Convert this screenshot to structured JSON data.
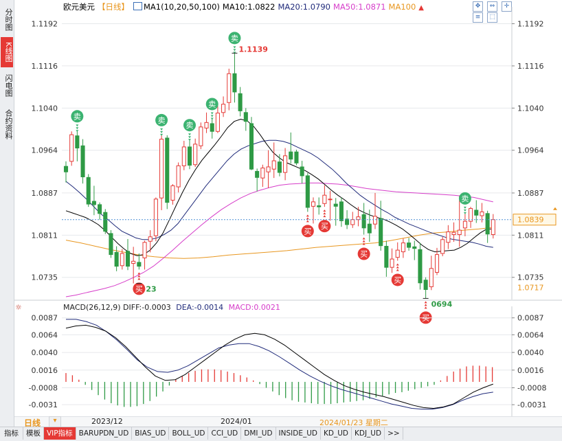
{
  "sidebar": {
    "tabs": [
      {
        "label": "分时图",
        "active": false
      },
      {
        "label": "K线图",
        "active": true
      },
      {
        "label": "闪电图",
        "active": false
      },
      {
        "label": "合约资料",
        "active": false
      }
    ]
  },
  "header": {
    "symbol": "欧元美元",
    "period": "【日线】",
    "ma_label": "MA1(10,20,50,100)",
    "ma10": "MA10:1.0822",
    "ma20": "MA20:1.0790",
    "ma50": "MA50:1.0871",
    "ma100": "MA100",
    "icons": [
      "fullscreen-icon",
      "fit-icon",
      "move-icon",
      "settings-icon",
      "screenshot-icon"
    ]
  },
  "colors": {
    "up": "#e53935",
    "down": "#2e9a45",
    "ma10": "#000000",
    "ma20": "#1f2a7a",
    "ma50": "#d63cc9",
    "ma100": "#e8961e",
    "macd_dea": "#1f2a7a",
    "macd_diff": "#000000"
  },
  "chart_data": [
    {
      "type": "candlestick",
      "ylim": [
        1.07,
        1.121
      ],
      "yticks": [
        "1.1192",
        "1.1116",
        "1.1040",
        "1.0964",
        "1.0887",
        "1.0811",
        "1.0735"
      ],
      "xticks": [
        "2023/12",
        "2024/01"
      ],
      "current_price": "1.0839",
      "ma100_value": "1.0717",
      "high_label": "1.1139",
      "low_labels": [
        "23",
        "0694"
      ],
      "sell_marker": "卖",
      "buy_marker": "买",
      "candles": [
        [
          1.0935,
          1.0925,
          1.0944,
          1.0906
        ],
        [
          1.0944,
          1.0992,
          1.0998,
          1.0936
        ],
        [
          1.099,
          1.0968,
          1.0998,
          1.0944
        ],
        [
          1.0972,
          1.0916,
          1.0984,
          1.0904
        ],
        [
          1.0915,
          1.0867,
          1.0921,
          1.0862
        ],
        [
          1.0872,
          1.0866,
          1.09,
          1.0847
        ],
        [
          1.0866,
          1.085,
          1.087,
          1.0839
        ],
        [
          1.0852,
          1.0818,
          1.0858,
          1.0813
        ],
        [
          1.0814,
          1.0776,
          1.082,
          1.077
        ],
        [
          1.078,
          1.0755,
          1.0791,
          1.0746
        ],
        [
          1.0756,
          1.0778,
          1.0786,
          1.0749
        ],
        [
          1.0782,
          1.0755,
          1.0804,
          1.0748
        ],
        [
          1.076,
          1.0764,
          1.079,
          1.0724
        ],
        [
          1.0762,
          1.0755,
          1.0778,
          1.0749
        ],
        [
          1.077,
          1.0798,
          1.0801,
          1.0749
        ],
        [
          1.08,
          1.0808,
          1.082,
          1.078
        ],
        [
          1.081,
          1.0876,
          1.0879,
          1.08
        ],
        [
          1.0878,
          1.0984,
          1.0991,
          1.0856
        ],
        [
          1.0986,
          1.087,
          1.0991,
          1.0858
        ],
        [
          1.0874,
          1.09,
          1.0903,
          1.0866
        ],
        [
          1.0898,
          1.0936,
          1.0942,
          1.0888
        ],
        [
          1.0936,
          1.097,
          1.0981,
          1.0928
        ],
        [
          1.097,
          1.0937,
          1.0982,
          1.093
        ],
        [
          1.0938,
          1.0975,
          1.0985,
          1.0934
        ],
        [
          1.0972,
          1.1006,
          1.1014,
          1.0966
        ],
        [
          1.1004,
          1.1014,
          1.1032,
          1.0995
        ],
        [
          1.1012,
          1.0998,
          1.102,
          1.0985
        ],
        [
          1.0998,
          1.1031,
          1.1044,
          1.0995
        ],
        [
          1.1032,
          1.1047,
          1.1061,
          1.1024
        ],
        [
          1.105,
          1.1102,
          1.1111,
          1.1036
        ],
        [
          1.1102,
          1.1069,
          1.1139,
          1.105
        ],
        [
          1.1066,
          1.1035,
          1.1078,
          1.1025
        ],
        [
          1.1032,
          1.1016,
          1.104,
          1.0999
        ],
        [
          1.1012,
          1.093,
          1.1024,
          1.0928
        ],
        [
          1.0926,
          1.0915,
          1.0931,
          1.089
        ],
        [
          1.0914,
          1.0932,
          1.0938,
          1.0898
        ],
        [
          1.0925,
          1.0934,
          1.0964,
          1.0896
        ],
        [
          1.093,
          1.0945,
          1.0978,
          1.0914
        ],
        [
          1.0943,
          1.0924,
          1.0957,
          1.0917
        ],
        [
          1.0924,
          1.0954,
          1.0968,
          1.091
        ],
        [
          1.0961,
          1.0948,
          1.0996,
          1.094
        ],
        [
          1.0961,
          1.0941,
          1.0965,
          1.0937
        ],
        [
          1.0934,
          1.0918,
          1.0945,
          1.0904
        ],
        [
          1.0918,
          1.0861,
          1.0923,
          1.0853
        ],
        [
          1.0863,
          1.0871,
          1.0879,
          1.0832
        ],
        [
          1.0864,
          1.0862,
          1.0879,
          1.0848
        ],
        [
          1.0868,
          1.0883,
          1.0901,
          1.0862
        ],
        [
          1.0875,
          1.0876,
          1.0891,
          1.0837
        ],
        [
          1.0867,
          1.0863,
          1.0878,
          1.0828
        ],
        [
          1.0871,
          1.0837,
          1.0879,
          1.0826
        ],
        [
          1.084,
          1.083,
          1.0856,
          1.0822
        ],
        [
          1.083,
          1.0839,
          1.0853,
          1.0824
        ],
        [
          1.0839,
          1.0844,
          1.0862,
          1.0827
        ],
        [
          1.0848,
          1.0824,
          1.0869,
          1.0812
        ],
        [
          1.0831,
          1.0815,
          1.0857,
          1.0799
        ],
        [
          1.0831,
          1.0845,
          1.0887,
          1.0822
        ],
        [
          1.0841,
          1.0792,
          1.0873,
          1.0783
        ],
        [
          1.0791,
          1.0753,
          1.0801,
          1.0736
        ],
        [
          1.0753,
          1.0768,
          1.0787,
          1.0743
        ],
        [
          1.0771,
          1.0784,
          1.0798,
          1.0765
        ],
        [
          1.0781,
          1.0797,
          1.0805,
          1.077
        ],
        [
          1.0797,
          1.0789,
          1.0806,
          1.0783
        ],
        [
          1.079,
          1.0787,
          1.0801,
          1.0766
        ],
        [
          1.0785,
          1.0725,
          1.0797,
          1.0713
        ],
        [
          1.073,
          1.0713,
          1.0735,
          1.0697
        ],
        [
          1.0718,
          1.0751,
          1.0774,
          1.0712
        ],
        [
          1.0744,
          1.0776,
          1.0788,
          1.0739
        ],
        [
          1.0778,
          1.0803,
          1.0808,
          1.0773
        ],
        [
          1.0798,
          1.0817,
          1.0829,
          1.0786
        ],
        [
          1.0812,
          1.0816,
          1.0834,
          1.0799
        ],
        [
          1.0812,
          1.082,
          1.0882,
          1.079
        ],
        [
          1.0824,
          1.0836,
          1.085,
          1.0809
        ],
        [
          1.0836,
          1.0859,
          1.0862,
          1.0824
        ],
        [
          1.0856,
          1.0847,
          1.0874,
          1.0833
        ],
        [
          1.0846,
          1.0853,
          1.0869,
          1.0834
        ],
        [
          1.085,
          1.0813,
          1.0855,
          1.0797
        ],
        [
          1.0812,
          1.0839,
          1.0849,
          1.0805
        ]
      ],
      "ma10_open": 1.0855,
      "ma10_path": [
        1.0855,
        1.0851,
        1.0847,
        1.0843,
        1.0837,
        1.083,
        1.082,
        1.0808,
        1.0796,
        1.0786,
        1.0778,
        1.0774,
        1.0776,
        1.0784,
        1.0797,
        1.0815,
        1.0839,
        1.0864,
        1.0888,
        1.091,
        1.0929,
        1.0946,
        1.096,
        1.0974,
        1.0989,
        1.1005,
        1.1016,
        1.102,
        1.1017,
        1.1007,
        1.0992,
        1.0975,
        1.096,
        1.095,
        1.0942,
        1.0937,
        1.0932,
        1.0927,
        1.092,
        1.0912,
        1.0902,
        1.0892,
        1.0883,
        1.0875,
        1.0866,
        1.0858,
        1.0852,
        1.0847,
        1.0843,
        1.084,
        1.0835,
        1.0829,
        1.0822,
        1.0813,
        1.0803,
        1.0793,
        1.0785,
        1.0781,
        1.0782,
        1.0783,
        1.0784,
        1.0789,
        1.0796,
        1.0806,
        1.0815,
        1.0822,
        1.0822
      ],
      "ma20_path": [
        1.0908,
        1.0898,
        1.0887,
        1.0875,
        1.0862,
        1.0849,
        1.0839,
        1.0828,
        1.0818,
        1.0812,
        1.0806,
        1.0803,
        1.0803,
        1.0806,
        1.0812,
        1.082,
        1.0832,
        1.0849,
        1.0866,
        1.0883,
        1.09,
        1.0915,
        1.093,
        1.0945,
        1.0957,
        1.0966,
        1.0972,
        1.0976,
        1.098,
        1.0982,
        1.0982,
        1.098,
        1.0976,
        1.097,
        1.0964,
        1.0958,
        1.095,
        1.094,
        1.093,
        1.0918,
        1.0905,
        1.0894,
        1.0883,
        1.0874,
        1.0866,
        1.0858,
        1.0851,
        1.0843,
        1.0837,
        1.0831,
        1.0826,
        1.0821,
        1.0816,
        1.0812,
        1.0808,
        1.0804,
        1.0802,
        1.08,
        1.0798,
        1.0795,
        1.0791,
        1.0789
      ],
      "ma50_path": [
        1.07,
        1.0703,
        1.0707,
        1.0711,
        1.0715,
        1.072,
        1.0727,
        1.0735,
        1.0744,
        1.0755,
        1.0769,
        1.0784,
        1.08,
        1.0815,
        1.083,
        1.0844,
        1.0857,
        1.0868,
        1.0878,
        1.0886,
        1.0892,
        1.0897,
        1.0901,
        1.0903,
        1.0904,
        1.0905,
        1.0905,
        1.0904,
        1.0903,
        1.0901,
        1.0898,
        1.0895,
        1.0893,
        1.0891,
        1.0889,
        1.0888,
        1.0887,
        1.0886,
        1.0885,
        1.0884,
        1.0883,
        1.0881,
        1.0879,
        1.0875,
        1.0871
      ],
      "ma100_path": [
        1.0802,
        1.0797,
        1.0791,
        1.0785,
        1.078,
        1.0775,
        1.0772,
        1.077,
        1.0769,
        1.077,
        1.0772,
        1.0775,
        1.0777,
        1.0779,
        1.0781,
        1.0783,
        1.0786,
        1.0789,
        1.0791,
        1.0793,
        1.0795,
        1.0797,
        1.0801,
        1.0806,
        1.0811,
        1.0815,
        1.0817,
        1.082,
        1.0822,
        1.0825
      ]
    },
    {
      "type": "macd",
      "title": "MACD(26,12,9)",
      "diff": "DIFF:-0.0003",
      "dea": "DEA:-0.0014",
      "macd": "MACD:0.0021",
      "ylim": [
        -0.0043,
        0.0097
      ],
      "yticks": [
        "0.0087",
        "0.0064",
        "0.0040",
        "0.0016",
        "-0.0008",
        "-0.0031"
      ],
      "histogram": [
        0.0012,
        0.0009,
        0.0003,
        -0.0004,
        -0.0011,
        -0.0018,
        -0.0024,
        -0.0029,
        -0.0032,
        -0.0034,
        -0.0034,
        -0.0033,
        -0.003,
        -0.0026,
        -0.002,
        -0.0013,
        -0.0005,
        0.0003,
        0.0008,
        0.0012,
        0.0015,
        0.0017,
        0.0017,
        0.0017,
        0.0016,
        0.0014,
        0.0012,
        0.0009,
        0.0006,
        0.0002,
        -0.0003,
        -0.0008,
        -0.0013,
        -0.0018,
        -0.0022,
        -0.0025,
        -0.0027,
        -0.0028,
        -0.0029,
        -0.003,
        -0.003,
        -0.003,
        -0.0029,
        -0.0028,
        -0.0027,
        -0.0026,
        -0.0025,
        -0.0023,
        -0.0021,
        -0.0019,
        -0.0017,
        -0.0015,
        -0.0014,
        -0.0012,
        -0.001,
        -0.0008,
        -0.0006,
        -0.0004,
        0.0002,
        0.0008,
        0.0014,
        0.0018,
        0.0021,
        0.0022,
        0.0022,
        0.0021,
        0.002
      ],
      "diff_path": [
        0.0073,
        0.0076,
        0.0077,
        0.0074,
        0.0069,
        0.006,
        0.0048,
        0.0034,
        0.002,
        0.0008,
        0.0002,
        0.0003,
        0.001,
        0.002,
        0.003,
        0.004,
        0.005,
        0.0058,
        0.0064,
        0.0066,
        0.0064,
        0.0058,
        0.005,
        0.004,
        0.003,
        0.002,
        0.001,
        0.0002,
        -0.0005,
        -0.001,
        -0.0014,
        -0.0017,
        -0.002,
        -0.0024,
        -0.0028,
        -0.0032,
        -0.0035,
        -0.0036,
        -0.0034,
        -0.003,
        -0.0022,
        -0.0014,
        -0.0008,
        -0.0003
      ],
      "dea_path": [
        0.0085,
        0.0085,
        0.0082,
        0.0077,
        0.0068,
        0.0057,
        0.0044,
        0.003,
        0.002,
        0.0014,
        0.0013,
        0.0016,
        0.0022,
        0.003,
        0.0038,
        0.0046,
        0.005,
        0.0052,
        0.0052,
        0.0048,
        0.0042,
        0.0034,
        0.0025,
        0.0016,
        0.0008,
        0.0001,
        -0.0005,
        -0.001,
        -0.0014,
        -0.0018,
        -0.0022,
        -0.0026,
        -0.003,
        -0.0033,
        -0.0036,
        -0.0037,
        -0.0037,
        -0.0035,
        -0.0031,
        -0.0025,
        -0.002,
        -0.0016,
        -0.0014
      ]
    }
  ],
  "period_bar": {
    "label": "日线",
    "date_ticks": [
      "2023/12",
      "2024/01"
    ],
    "cursor_date": "2024/01/23 星期二"
  },
  "bottom_tabs": [
    "指标",
    "模板",
    "VIP指标",
    "BARUPDN_UD",
    "BIAS_UD",
    "BOLL_UD",
    "CCI_UD",
    "DMI_UD",
    "INSIDE_UD",
    "KD_UD",
    "KDJ_UD",
    ">>"
  ]
}
